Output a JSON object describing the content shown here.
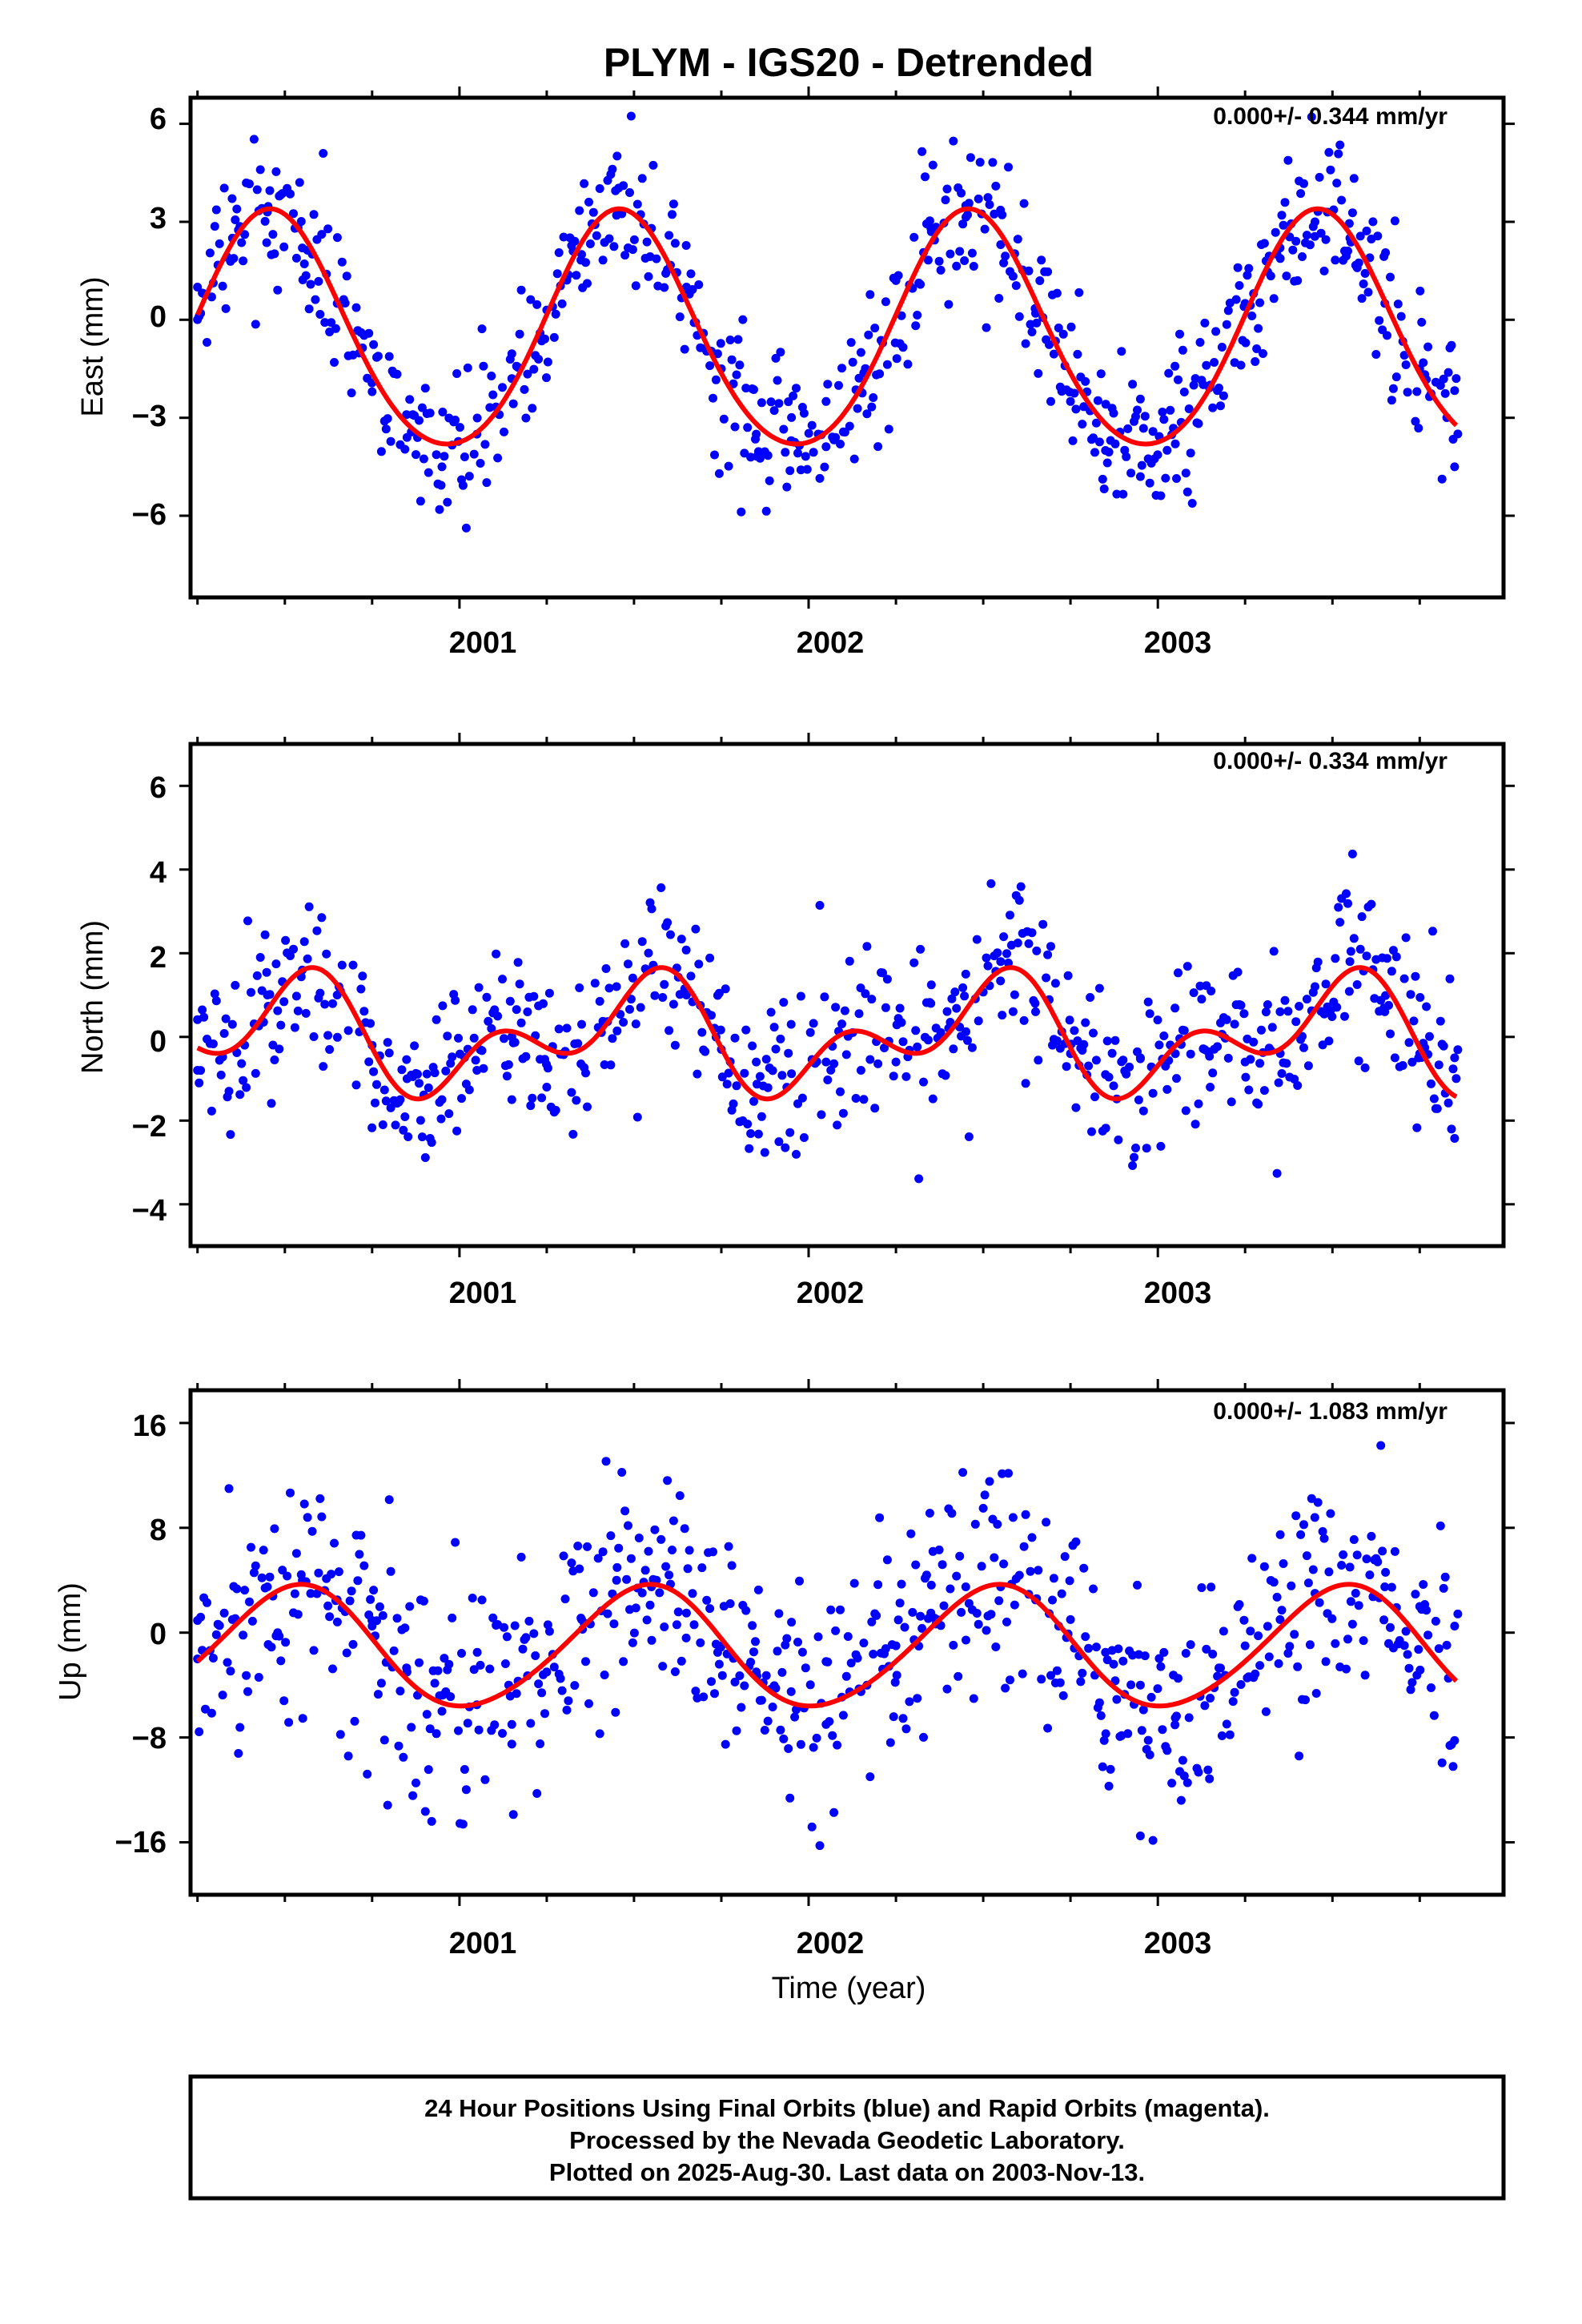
{
  "title": "PLYM - IGS20 - Detrended",
  "xlabel": "Time (year)",
  "x_tick_labels": [
    "2001",
    "2002",
    "2003"
  ],
  "footer": {
    "line1": "24 Hour Positions Using Final Orbits (blue) and Rapid Orbits (magenta).",
    "line2": "Processed by the Nevada Geodetic Laboratory.",
    "line3": "Plotted on 2025-Aug-30. Last data on 2003-Nov-13."
  },
  "colors": {
    "points": "#0000ff",
    "fit": "#ff0000",
    "axis": "#000000",
    "background": "#ffffff"
  },
  "chart_data": [
    {
      "type": "scatter",
      "name": "east",
      "ylabel": "East (mm)",
      "rate_text": "0.000+/- 0.344 mm/yr",
      "xlim": [
        2000.23,
        2003.99
      ],
      "ylim": [
        -8.5,
        6.8
      ],
      "yticks": [
        6,
        3,
        0,
        -3,
        -6
      ],
      "ytick_labels": [
        "6",
        "3",
        "0",
        "−3",
        "−6"
      ],
      "fit": {
        "offset": -0.5,
        "annual_amp": 3.6,
        "annual_peak": 2000.46,
        "semiannual_amp": 0.3,
        "semiannual_peak": 2000.45
      },
      "scatter_noise": 1.2,
      "points_sampled": [
        [
          2000.25,
          1.0
        ],
        [
          2000.35,
          2.5
        ],
        [
          2000.45,
          3.3
        ],
        [
          2000.55,
          2.2
        ],
        [
          2000.65,
          0.5
        ],
        [
          2000.75,
          -2.2
        ],
        [
          2000.85,
          -3.6
        ],
        [
          2000.95,
          -4.5
        ],
        [
          2001.05,
          -3.5
        ],
        [
          2001.15,
          -1.8
        ],
        [
          2001.25,
          0.3
        ],
        [
          2001.35,
          2.0
        ],
        [
          2001.45,
          3.2
        ],
        [
          2001.55,
          2.8
        ],
        [
          2001.65,
          1.0
        ],
        [
          2001.75,
          -1.5
        ],
        [
          2001.85,
          -3.5
        ],
        [
          2001.95,
          -3.7
        ],
        [
          2002.05,
          -2.5
        ],
        [
          2002.15,
          -1.0
        ],
        [
          2002.25,
          1.2
        ],
        [
          2002.35,
          2.8
        ],
        [
          2002.45,
          3.5
        ],
        [
          2002.55,
          2.3
        ],
        [
          2002.65,
          0.2
        ],
        [
          2002.75,
          -2.5
        ],
        [
          2002.85,
          -4.0
        ],
        [
          2002.95,
          -4.8
        ],
        [
          2003.05,
          -3.8
        ],
        [
          2003.15,
          -2.0
        ],
        [
          2003.25,
          0.5
        ],
        [
          2003.35,
          2.2
        ],
        [
          2003.45,
          3.0
        ],
        [
          2003.55,
          2.5
        ],
        [
          2003.65,
          0.5
        ],
        [
          2003.75,
          -1.5
        ],
        [
          2003.85,
          -4.5
        ]
      ]
    },
    {
      "type": "scatter",
      "name": "north",
      "ylabel": "North (mm)",
      "rate_text": "0.000+/- 0.334 mm/yr",
      "xlim": [
        2000.23,
        2003.99
      ],
      "ylim": [
        -5,
        7
      ],
      "yticks": [
        6,
        4,
        2,
        0,
        -2,
        -4
      ],
      "ytick_labels": [
        "6",
        "4",
        "2",
        "0",
        "−2",
        "−4"
      ],
      "fit": {
        "offset": 0.0,
        "annual_amp": 0.95,
        "annual_peak": 2000.5,
        "semiannual_amp": 0.85,
        "semiannual_peak": 2000.6
      },
      "scatter_noise": 1.0,
      "points_sampled": [
        [
          2000.25,
          -0.8
        ],
        [
          2000.35,
          0.3
        ],
        [
          2000.45,
          1.0
        ],
        [
          2000.55,
          1.6
        ],
        [
          2000.65,
          1.0
        ],
        [
          2000.75,
          -0.2
        ],
        [
          2000.85,
          -1.0
        ],
        [
          2000.95,
          -1.5
        ],
        [
          2001.05,
          -0.8
        ],
        [
          2001.15,
          -1.5
        ],
        [
          2001.25,
          -1.2
        ],
        [
          2001.35,
          0.3
        ],
        [
          2001.45,
          1.2
        ],
        [
          2001.55,
          1.6
        ],
        [
          2001.65,
          1.0
        ],
        [
          2001.75,
          -0.3
        ],
        [
          2001.85,
          -0.6
        ],
        [
          2001.95,
          0.3
        ],
        [
          2002.05,
          -0.6
        ],
        [
          2002.15,
          -0.8
        ],
        [
          2002.25,
          -0.6
        ],
        [
          2002.35,
          0.8
        ],
        [
          2002.45,
          1.5
        ],
        [
          2002.55,
          1.8
        ],
        [
          2002.65,
          0.6
        ],
        [
          2002.75,
          -0.4
        ],
        [
          2002.85,
          -0.9
        ],
        [
          2002.95,
          -0.5
        ],
        [
          2003.05,
          -0.4
        ],
        [
          2003.15,
          -1.2
        ],
        [
          2003.25,
          -0.6
        ],
        [
          2003.35,
          0.6
        ],
        [
          2003.45,
          1.2
        ],
        [
          2003.55,
          1.8
        ],
        [
          2003.65,
          0.6
        ],
        [
          2003.75,
          -0.4
        ],
        [
          2003.85,
          -0.5
        ]
      ]
    },
    {
      "type": "scatter",
      "name": "up",
      "ylabel": "Up (mm)",
      "rate_text": "0.000+/- 1.083 mm/yr",
      "xlim": [
        2000.23,
        2003.99
      ],
      "ylim": [
        -20,
        18.5
      ],
      "yticks": [
        16,
        8,
        0,
        -8,
        -16
      ],
      "ytick_labels": [
        "16",
        "8",
        "0",
        "−8",
        "−16"
      ],
      "fit": {
        "offset": -1.2,
        "annual_amp": 4.6,
        "annual_peak": 2000.53,
        "semiannual_amp": 0.4,
        "semiannual_peak": 2000.6
      },
      "scatter_noise": 4.2,
      "points_sampled": [
        [
          2000.25,
          -2.0
        ],
        [
          2000.35,
          1.0
        ],
        [
          2000.45,
          3.5
        ],
        [
          2000.55,
          4.0
        ],
        [
          2000.65,
          2.5
        ],
        [
          2000.75,
          0.5
        ],
        [
          2000.85,
          -3.0
        ],
        [
          2000.95,
          -6.0
        ],
        [
          2001.05,
          -5.5
        ],
        [
          2001.15,
          -7.0
        ],
        [
          2001.25,
          -3.0
        ],
        [
          2001.35,
          1.0
        ],
        [
          2001.45,
          4.0
        ],
        [
          2001.55,
          3.5
        ],
        [
          2001.65,
          1.5
        ],
        [
          2001.75,
          -1.0
        ],
        [
          2001.85,
          -3.0
        ],
        [
          2001.95,
          -4.5
        ],
        [
          2002.05,
          -7.0
        ],
        [
          2002.15,
          -4.5
        ],
        [
          2002.25,
          -1.0
        ],
        [
          2002.35,
          1.5
        ],
        [
          2002.45,
          3.5
        ],
        [
          2002.55,
          3.5
        ],
        [
          2002.65,
          2.5
        ],
        [
          2002.75,
          1.0
        ],
        [
          2002.85,
          -1.5
        ],
        [
          2002.95,
          -4.0
        ],
        [
          2003.05,
          -6.5
        ],
        [
          2003.15,
          -5.0
        ],
        [
          2003.25,
          -1.0
        ],
        [
          2003.35,
          1.0
        ],
        [
          2003.45,
          3.0
        ],
        [
          2003.55,
          5.0
        ],
        [
          2003.65,
          3.5
        ],
        [
          2003.75,
          2.0
        ],
        [
          2003.85,
          0.5
        ]
      ]
    }
  ]
}
